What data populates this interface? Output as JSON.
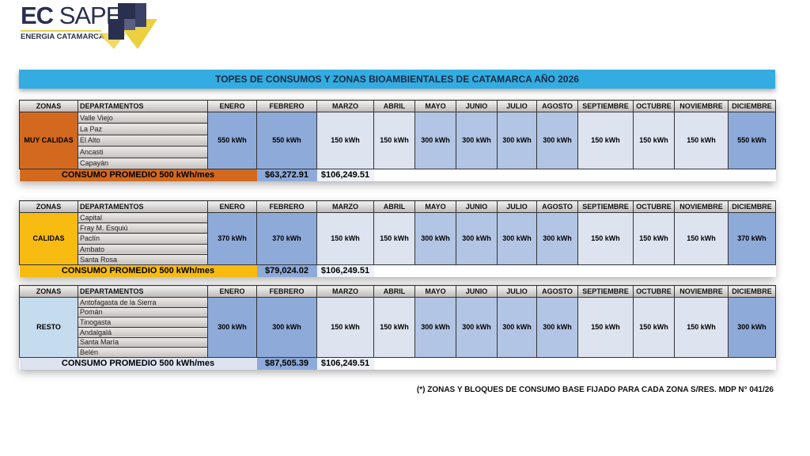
{
  "logo": {
    "name_bold": "EC",
    "name": "SAPEM",
    "tagline": "ENERGIA CATAMARCA"
  },
  "title": "TOPES DE CONSUMOS Y ZONAS BIOAMBIENTALES DE CATAMARCA AÑO 2026",
  "headers": {
    "zonas": "ZONAS",
    "departamentos": "DEPARTAMENTOS",
    "months": [
      "ENERO",
      "FEBRERO",
      "MARZO",
      "ABRIL",
      "MAYO",
      "JUNIO",
      "JULIO",
      "AGOSTO",
      "SEPTIEMBRE",
      "OCTUBRE",
      "NOVIEMBRE",
      "DICIEMBRE"
    ]
  },
  "colors": {
    "dark": "#8eaad9",
    "mid": "#b3c5e4",
    "light": "#dde3ef"
  },
  "zones": [
    {
      "name": "MUY CALIDAS",
      "color": "#d2691e",
      "departments": [
        "Valle Viejo",
        "La Paz",
        "El Alto",
        "Ancasti",
        "Capayán"
      ],
      "values": [
        "550 kWh",
        "550 kWh",
        "150 kWh",
        "150 kWh",
        "300 kWh",
        "300 kWh",
        "300 kWh",
        "300 kWh",
        "150 kWh",
        "150 kWh",
        "150 kWh",
        "550 kWh"
      ],
      "footer_label": "CONSUMO PROMEDIO 500 kWh/mes",
      "footer_febrero": "$63,272.91",
      "footer_marzo": "$106,249.51"
    },
    {
      "name": "CALIDAS",
      "color": "#f7bb12",
      "departments": [
        "Capital",
        "Fray M. Esquiú",
        "Paclín",
        "Ambato",
        "Santa Rosa"
      ],
      "values": [
        "370 kWh",
        "370 kWh",
        "150 kWh",
        "150 kWh",
        "300 kWh",
        "300 kWh",
        "300 kWh",
        "300 kWh",
        "150 kWh",
        "150 kWh",
        "150 kWh",
        "370 kWh"
      ],
      "footer_label": "CONSUMO PROMEDIO 500 kWh/mes",
      "footer_febrero": "$79,024.02",
      "footer_marzo": "$106,249.51"
    },
    {
      "name": "RESTO",
      "color": "#c5dcef",
      "departments": [
        "Antofagasta de la Sierra",
        "Pomán",
        "Tinogasta",
        "Andalgalá",
        "Santa María",
        "Belén"
      ],
      "values": [
        "300 kWh",
        "300 kWh",
        "150 kWh",
        "150 kWh",
        "300 kWh",
        "300 kWh",
        "300 kWh",
        "300 kWh",
        "150 kWh",
        "150 kWh",
        "150 kWh",
        "300 kWh"
      ],
      "footer_label": "CONSUMO PROMEDIO 500 kWh/mes",
      "footer_febrero": "$87,505.39",
      "footer_marzo": "$106,249.51"
    }
  ],
  "footnote": "(*) ZONAS  Y BLOQUES DE CONSUMO BASE FIJADO PARA CADA ZONA S/RES. MDP N° 041/26"
}
